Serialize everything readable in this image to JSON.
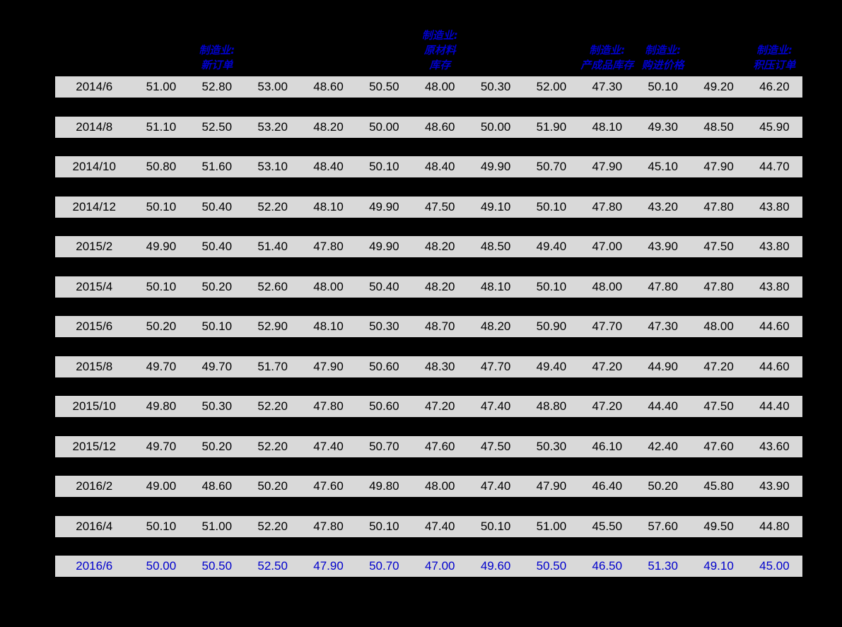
{
  "page": {
    "background": "#000000"
  },
  "table": {
    "row_bg": "#D9D9D9",
    "header_color": "#0000CC",
    "highlight_color": "#0000CC",
    "text_color": "#000000",
    "headers": [
      {
        "column": 3,
        "lines": [
          "制造业:",
          "新订单"
        ]
      },
      {
        "column": 7,
        "lines": [
          "制造业:",
          "原材料",
          "库存"
        ]
      },
      {
        "column": 10,
        "lines": [
          "制造业:",
          "产成品库存"
        ]
      },
      {
        "column": 11,
        "lines": [
          "制造业:",
          "购进价格"
        ]
      },
      {
        "column": 13,
        "lines": [
          "制造业:",
          "积压订单"
        ]
      }
    ],
    "rows": [
      {
        "date": "2014/6",
        "values": [
          "51.00",
          "52.80",
          "53.00",
          "48.60",
          "50.50",
          "48.00",
          "50.30",
          "52.00",
          "47.30",
          "50.10",
          "49.20",
          "46.20"
        ],
        "highlight": false
      },
      {
        "date": "2014/8",
        "values": [
          "51.10",
          "52.50",
          "53.20",
          "48.20",
          "50.00",
          "48.60",
          "50.00",
          "51.90",
          "48.10",
          "49.30",
          "48.50",
          "45.90"
        ],
        "highlight": false
      },
      {
        "date": "2014/10",
        "values": [
          "50.80",
          "51.60",
          "53.10",
          "48.40",
          "50.10",
          "48.40",
          "49.90",
          "50.70",
          "47.90",
          "45.10",
          "47.90",
          "44.70"
        ],
        "highlight": false
      },
      {
        "date": "2014/12",
        "values": [
          "50.10",
          "50.40",
          "52.20",
          "48.10",
          "49.90",
          "47.50",
          "49.10",
          "50.10",
          "47.80",
          "43.20",
          "47.80",
          "43.80"
        ],
        "highlight": false
      },
      {
        "date": "2015/2",
        "values": [
          "49.90",
          "50.40",
          "51.40",
          "47.80",
          "49.90",
          "48.20",
          "48.50",
          "49.40",
          "47.00",
          "43.90",
          "47.50",
          "43.80"
        ],
        "highlight": false
      },
      {
        "date": "2015/4",
        "values": [
          "50.10",
          "50.20",
          "52.60",
          "48.00",
          "50.40",
          "48.20",
          "48.10",
          "50.10",
          "48.00",
          "47.80",
          "47.80",
          "43.80"
        ],
        "highlight": false
      },
      {
        "date": "2015/6",
        "values": [
          "50.20",
          "50.10",
          "52.90",
          "48.10",
          "50.30",
          "48.70",
          "48.20",
          "50.90",
          "47.70",
          "47.30",
          "48.00",
          "44.60"
        ],
        "highlight": false
      },
      {
        "date": "2015/8",
        "values": [
          "49.70",
          "49.70",
          "51.70",
          "47.90",
          "50.60",
          "48.30",
          "47.70",
          "49.40",
          "47.20",
          "44.90",
          "47.20",
          "44.60"
        ],
        "highlight": false
      },
      {
        "date": "2015/10",
        "values": [
          "49.80",
          "50.30",
          "52.20",
          "47.80",
          "50.60",
          "47.20",
          "47.40",
          "48.80",
          "47.20",
          "44.40",
          "47.50",
          "44.40"
        ],
        "highlight": false
      },
      {
        "date": "2015/12",
        "values": [
          "49.70",
          "50.20",
          "52.20",
          "47.40",
          "50.70",
          "47.60",
          "47.50",
          "50.30",
          "46.10",
          "42.40",
          "47.60",
          "43.60"
        ],
        "highlight": false
      },
      {
        "date": "2016/2",
        "values": [
          "49.00",
          "48.60",
          "50.20",
          "47.60",
          "49.80",
          "48.00",
          "47.40",
          "47.90",
          "46.40",
          "50.20",
          "45.80",
          "43.90"
        ],
        "highlight": false
      },
      {
        "date": "2016/4",
        "values": [
          "50.10",
          "51.00",
          "52.20",
          "47.80",
          "50.10",
          "47.40",
          "50.10",
          "51.00",
          "45.50",
          "57.60",
          "49.50",
          "44.80"
        ],
        "highlight": false
      },
      {
        "date": "2016/6",
        "values": [
          "50.00",
          "50.50",
          "52.50",
          "47.90",
          "50.70",
          "47.00",
          "49.60",
          "50.50",
          "46.50",
          "51.30",
          "49.10",
          "45.00"
        ],
        "highlight": true
      }
    ]
  },
  "chart_data": {
    "type": "table",
    "title": "",
    "columns": [
      "",
      "",
      "制造业:新订单",
      "",
      "",
      "",
      "制造业:原材料库存",
      "",
      "",
      "制造业:产成品库存",
      "制造业:购进价格",
      "",
      "制造业:积压订单"
    ],
    "rows": [
      [
        "2014/6",
        51.0,
        52.8,
        53.0,
        48.6,
        50.5,
        48.0,
        50.3,
        52.0,
        47.3,
        50.1,
        49.2,
        46.2
      ],
      [
        "2014/8",
        51.1,
        52.5,
        53.2,
        48.2,
        50.0,
        48.6,
        50.0,
        51.9,
        48.1,
        49.3,
        48.5,
        45.9
      ],
      [
        "2014/10",
        50.8,
        51.6,
        53.1,
        48.4,
        50.1,
        48.4,
        49.9,
        50.7,
        47.9,
        45.1,
        47.9,
        44.7
      ],
      [
        "2014/12",
        50.1,
        50.4,
        52.2,
        48.1,
        49.9,
        47.5,
        49.1,
        50.1,
        47.8,
        43.2,
        47.8,
        43.8
      ],
      [
        "2015/2",
        49.9,
        50.4,
        51.4,
        47.8,
        49.9,
        48.2,
        48.5,
        49.4,
        47.0,
        43.9,
        47.5,
        43.8
      ],
      [
        "2015/4",
        50.1,
        50.2,
        52.6,
        48.0,
        50.4,
        48.2,
        48.1,
        50.1,
        48.0,
        47.8,
        47.8,
        43.8
      ],
      [
        "2015/6",
        50.2,
        50.1,
        52.9,
        48.1,
        50.3,
        48.7,
        48.2,
        50.9,
        47.7,
        47.3,
        48.0,
        44.6
      ],
      [
        "2015/8",
        49.7,
        49.7,
        51.7,
        47.9,
        50.6,
        48.3,
        47.7,
        49.4,
        47.2,
        44.9,
        47.2,
        44.6
      ],
      [
        "2015/10",
        49.8,
        50.3,
        52.2,
        47.8,
        50.6,
        47.2,
        47.4,
        48.8,
        47.2,
        44.4,
        47.5,
        44.4
      ],
      [
        "2015/12",
        49.7,
        50.2,
        52.2,
        47.4,
        50.7,
        47.6,
        47.5,
        50.3,
        46.1,
        42.4,
        47.6,
        43.6
      ],
      [
        "2016/2",
        49.0,
        48.6,
        50.2,
        47.6,
        49.8,
        48.0,
        47.4,
        47.9,
        46.4,
        50.2,
        45.8,
        43.9
      ],
      [
        "2016/4",
        50.1,
        51.0,
        52.2,
        47.8,
        50.1,
        47.4,
        50.1,
        51.0,
        45.5,
        57.6,
        49.5,
        44.8
      ],
      [
        "2016/6",
        50.0,
        50.5,
        52.5,
        47.9,
        50.7,
        47.0,
        49.6,
        50.5,
        46.5,
        51.3,
        49.1,
        45.0
      ]
    ]
  }
}
